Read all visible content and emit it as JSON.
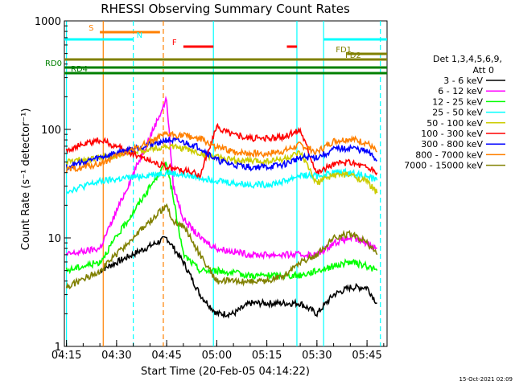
{
  "chart_data": {
    "type": "line",
    "title": "RHESSI Observing Summary Count Rates",
    "xlabel": "Start Time (20-Feb-05 04:14:22)",
    "ylabel": "Count Rate (s⁻¹ detector⁻¹)",
    "y_scale": "log",
    "ylim": [
      1,
      1000
    ],
    "xlim": [
      "04:14:22",
      "05:51:00"
    ],
    "x_ticks": [
      "04:15",
      "04:30",
      "04:45",
      "05:00",
      "05:15",
      "05:30",
      "05:45"
    ],
    "y_ticks": [
      "1",
      "10",
      "100",
      "1000"
    ],
    "legend_title": "Det 1,3,4,5,6,9,",
    "legend_subtitle": "Att 0",
    "legend_position": "right",
    "footer_stamp": "15-Oct-2021 02:09",
    "series": [
      {
        "name": "3 - 6 keV",
        "color": "#000000",
        "points": [
          [
            "04:25",
            5
          ],
          [
            "04:45",
            10
          ],
          [
            "04:50",
            6
          ],
          [
            "04:55",
            3
          ],
          [
            "05:00",
            2
          ],
          [
            "05:05",
            2
          ],
          [
            "05:10",
            2.5
          ],
          [
            "05:15",
            2.5
          ],
          [
            "05:20",
            2.5
          ],
          [
            "05:25",
            2.5
          ],
          [
            "05:30",
            2
          ],
          [
            "05:35",
            3
          ],
          [
            "05:40",
            3.5
          ],
          [
            "05:45",
            3.5
          ],
          [
            "05:48",
            2.5
          ]
        ]
      },
      {
        "name": "6 - 12 keV",
        "color": "#ff00ff",
        "points": [
          [
            "04:15",
            7
          ],
          [
            "04:25",
            8
          ],
          [
            "04:45",
            190
          ],
          [
            "04:47",
            30
          ],
          [
            "04:50",
            15
          ],
          [
            "04:55",
            10
          ],
          [
            "05:00",
            8
          ],
          [
            "05:10",
            7
          ],
          [
            "05:15",
            7
          ],
          [
            "05:20",
            7
          ],
          [
            "05:25",
            7
          ],
          [
            "05:30",
            7
          ],
          [
            "05:35",
            9
          ],
          [
            "05:40",
            10
          ],
          [
            "05:45",
            9
          ],
          [
            "05:48",
            8
          ]
        ]
      },
      {
        "name": "12 - 25 keV",
        "color": "#00ff00",
        "points": [
          [
            "04:15",
            5
          ],
          [
            "04:25",
            6
          ],
          [
            "04:45",
            50
          ],
          [
            "04:50",
            7
          ],
          [
            "04:55",
            5
          ],
          [
            "05:00",
            5
          ],
          [
            "05:10",
            4.5
          ],
          [
            "05:15",
            4.5
          ],
          [
            "05:20",
            4.5
          ],
          [
            "05:25",
            4.5
          ],
          [
            "05:30",
            5
          ],
          [
            "05:35",
            5.5
          ],
          [
            "05:40",
            6
          ],
          [
            "05:45",
            5.5
          ],
          [
            "05:48",
            5
          ]
        ]
      },
      {
        "name": "25 - 50 keV",
        "color": "#00ffff",
        "points": [
          [
            "04:15",
            27
          ],
          [
            "04:25",
            33
          ],
          [
            "04:45",
            40
          ],
          [
            "04:50",
            38
          ],
          [
            "04:55",
            36
          ],
          [
            "05:00",
            34
          ],
          [
            "05:05",
            32
          ],
          [
            "05:10",
            31
          ],
          [
            "05:15",
            31
          ],
          [
            "05:20",
            33
          ],
          [
            "05:25",
            38
          ],
          [
            "05:30",
            37
          ],
          [
            "05:35",
            40
          ],
          [
            "05:40",
            40
          ],
          [
            "05:45",
            37
          ],
          [
            "05:48",
            34
          ]
        ]
      },
      {
        "name": "50 - 100 keV",
        "color": "#cccc00",
        "points": [
          [
            "04:15",
            50
          ],
          [
            "04:25",
            55
          ],
          [
            "04:45",
            70
          ],
          [
            "04:50",
            67
          ],
          [
            "04:55",
            60
          ],
          [
            "05:00",
            55
          ],
          [
            "05:05",
            52
          ],
          [
            "05:10",
            51
          ],
          [
            "05:15",
            51
          ],
          [
            "05:20",
            53
          ],
          [
            "05:25",
            60
          ],
          [
            "05:30",
            32
          ],
          [
            "05:35",
            38
          ],
          [
            "05:40",
            38
          ],
          [
            "05:45",
            33
          ],
          [
            "05:48",
            26
          ]
        ]
      },
      {
        "name": "100 - 300 keV",
        "color": "#ff0000",
        "points": [
          [
            "04:15",
            65
          ],
          [
            "04:25",
            80
          ],
          [
            "04:45",
            45
          ],
          [
            "04:50",
            42
          ],
          [
            "04:55",
            38
          ],
          [
            "05:00",
            105
          ],
          [
            "05:05",
            90
          ],
          [
            "05:10",
            83
          ],
          [
            "05:15",
            82
          ],
          [
            "05:20",
            85
          ],
          [
            "05:25",
            100
          ],
          [
            "05:30",
            40
          ],
          [
            "05:35",
            48
          ],
          [
            "05:40",
            50
          ],
          [
            "05:45",
            45
          ],
          [
            "05:48",
            40
          ]
        ]
      },
      {
        "name": "300 - 800 keV",
        "color": "#0000ff",
        "points": [
          [
            "04:15",
            45
          ],
          [
            "04:25",
            55
          ],
          [
            "04:45",
            80
          ],
          [
            "04:50",
            76
          ],
          [
            "04:55",
            68
          ],
          [
            "05:00",
            52
          ],
          [
            "05:05",
            47
          ],
          [
            "05:10",
            45
          ],
          [
            "05:15",
            45
          ],
          [
            "05:20",
            47
          ],
          [
            "05:25",
            55
          ],
          [
            "05:30",
            55
          ],
          [
            "05:35",
            65
          ],
          [
            "05:40",
            68
          ],
          [
            "05:45",
            62
          ],
          [
            "05:48",
            52
          ]
        ]
      },
      {
        "name": "800 - 7000 keV",
        "color": "#ff8000",
        "points": [
          [
            "04:15",
            42
          ],
          [
            "04:25",
            48
          ],
          [
            "04:45",
            90
          ],
          [
            "04:50",
            88
          ],
          [
            "04:55",
            82
          ],
          [
            "05:00",
            68
          ],
          [
            "05:05",
            62
          ],
          [
            "05:10",
            60
          ],
          [
            "05:15",
            60
          ],
          [
            "05:20",
            63
          ],
          [
            "05:25",
            72
          ],
          [
            "05:30",
            62
          ],
          [
            "05:35",
            78
          ],
          [
            "05:40",
            82
          ],
          [
            "05:45",
            75
          ],
          [
            "05:48",
            62
          ]
        ]
      },
      {
        "name": "7000 - 15000 keV",
        "color": "#808000",
        "points": [
          [
            "04:15",
            3.5
          ],
          [
            "04:25",
            5
          ],
          [
            "04:45",
            20
          ],
          [
            "04:47",
            14
          ],
          [
            "04:50",
            13
          ],
          [
            "04:55",
            7
          ],
          [
            "05:00",
            4
          ],
          [
            "05:05",
            4
          ],
          [
            "05:10",
            4
          ],
          [
            "05:15",
            4
          ],
          [
            "05:20",
            4.5
          ],
          [
            "05:25",
            6
          ],
          [
            "05:30",
            7
          ],
          [
            "05:35",
            10
          ],
          [
            "05:40",
            11
          ],
          [
            "05:45",
            9
          ],
          [
            "05:48",
            7
          ]
        ]
      }
    ],
    "vlines": [
      {
        "time": "04:15",
        "color": "#00ffff",
        "style": "solid"
      },
      {
        "time": "04:26",
        "color": "#ff8000",
        "style": "solid"
      },
      {
        "time": "04:35",
        "color": "#00ffff",
        "style": "dashed"
      },
      {
        "time": "04:44",
        "color": "#ff8000",
        "style": "dashed"
      },
      {
        "time": "04:59",
        "color": "#00ffff",
        "style": "solid"
      },
      {
        "time": "05:24",
        "color": "#00ffff",
        "style": "solid"
      },
      {
        "time": "05:32",
        "color": "#00ffff",
        "style": "solid"
      },
      {
        "time": "05:49",
        "color": "#00ffff",
        "style": "dashed"
      }
    ],
    "flag_bars": [
      {
        "label": "S",
        "color": "#ff8000",
        "row": 0,
        "start": "04:25",
        "end": "04:43",
        "label_side": "left"
      },
      {
        "label": "N",
        "color": "#00ffff",
        "row": 1,
        "start": "04:14:22",
        "end": "04:35",
        "label_side": "right"
      },
      {
        "label": "N",
        "color": "#00ffff",
        "row": 1,
        "start": "05:32",
        "end": "05:51",
        "label_side": "none"
      },
      {
        "label": "F",
        "color": "#ff0000",
        "row": 2,
        "start": "04:50",
        "end": "04:59",
        "label_side": "left"
      },
      {
        "label": "F",
        "color": "#ff0000",
        "row": 2,
        "start": "05:21",
        "end": "05:24",
        "label_side": "none"
      },
      {
        "label": "FD1",
        "color": "#808000",
        "row": 3,
        "start": "05:39",
        "end": "05:51",
        "label_side": "left"
      },
      {
        "label": "FD2",
        "color": "#808000",
        "row": 4,
        "start": "04:14:22",
        "end": "05:51",
        "label_side": "right-inner"
      },
      {
        "label": "RD0",
        "color": "#008000",
        "row": 5,
        "start": "04:14:22",
        "end": "05:51",
        "label_side": "outer-left"
      },
      {
        "label": "RD4",
        "color": "#008000",
        "row": 6,
        "start": "04:14:22",
        "end": "04:44",
        "label_side": "left-inner"
      },
      {
        "label": "RD4",
        "color": "#008000",
        "row": 6,
        "start": "04:44",
        "end": "05:01",
        "label_side": "none"
      },
      {
        "label": "RD4",
        "color": "#008000",
        "row": 6,
        "start": "05:01",
        "end": "05:31",
        "label_side": "none"
      },
      {
        "label": "RD4",
        "color": "#008000",
        "row": 6,
        "start": "05:31",
        "end": "05:51",
        "label_side": "none"
      }
    ]
  }
}
